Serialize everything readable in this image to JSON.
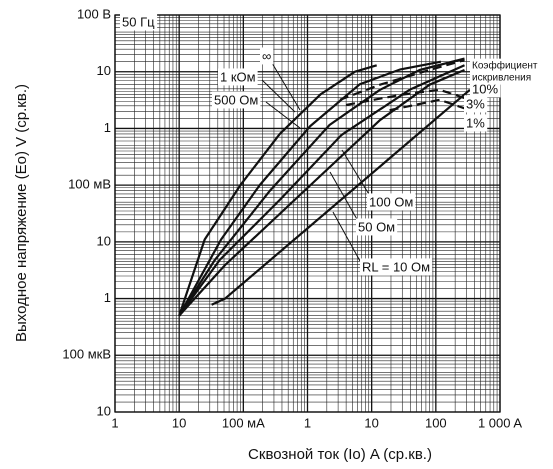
{
  "chart_data": {
    "type": "line",
    "log_x": true,
    "log_y": true,
    "grid": true,
    "xlabel": "Сквозной ток (Io) A (ср.кв.)",
    "ylabel": "Выходное напряжение  (Eo) V (ср.кв.)",
    "annotations": [
      "50 Гц",
      "Коэффициент",
      "искривления"
    ],
    "xlim": [
      0.001,
      1000
    ],
    "ylim": [
      1e-05,
      100
    ],
    "xticks": [
      {
        "value": 0.001,
        "label": "1"
      },
      {
        "value": 0.01,
        "label": "10"
      },
      {
        "value": 0.1,
        "label": "100 мA"
      },
      1,
      10,
      100,
      {
        "value": 1000,
        "label": "1 000 A"
      }
    ],
    "yticks": [
      {
        "value": 1e-05,
        "label": "10"
      },
      {
        "value": 0.0001,
        "label": "100 мкВ"
      },
      {
        "value": 0.001,
        "label": "1"
      },
      {
        "value": 0.01,
        "label": "10"
      },
      {
        "value": 0.1,
        "label": "100 мВ"
      },
      1,
      10,
      {
        "value": 100,
        "label": "100 В"
      }
    ],
    "series": [
      {
        "name": "∞",
        "color": "#111111",
        "x": [
          0.01,
          0.025,
          0.09,
          0.37,
          1.6,
          5.5,
          12
        ],
        "values": [
          0.0005,
          0.011,
          0.1,
          0.8,
          4,
          10,
          13
        ]
      },
      {
        "name": "1 кОм",
        "color": "#111111",
        "x": [
          0.01,
          0.045,
          0.18,
          1.1,
          6.5,
          28,
          120
        ],
        "values": [
          0.0005,
          0.011,
          0.1,
          1.1,
          6,
          11,
          15
        ]
      },
      {
        "name": "500 Ом",
        "color": "#111111",
        "x": [
          0.01,
          0.036,
          0.26,
          2.2,
          13.5,
          56,
          280
        ],
        "values": [
          0.0005,
          0.0048,
          0.08,
          1.15,
          4.8,
          10.7,
          17
        ]
      },
      {
        "name": "100 Ом",
        "color": "#111111",
        "x": [
          0.01,
          0.043,
          0.37,
          3.4,
          39,
          280
        ],
        "values": [
          0.0005,
          0.0048,
          0.055,
          0.77,
          4.8,
          13
        ]
      },
      {
        "name": "50 Ом",
        "color": "#111111",
        "x": [
          0.01,
          0.052,
          0.76,
          13.5,
          80,
          280
        ],
        "values": [
          0.0005,
          0.0039,
          0.067,
          1.4,
          5.9,
          10.7
        ]
      },
      {
        "name": "RL = 10 Ом",
        "color": "#111111",
        "x": [
          0.032,
          0.052,
          340
        ],
        "values": [
          0.00078,
          0.001,
          4.8
        ]
      },
      {
        "name": "10%",
        "color": "#111111",
        "dashed": true,
        "x": [
          3.2,
          13.5,
          80,
          280
        ],
        "values": [
          3.2,
          5.9,
          10.7,
          16
        ]
      },
      {
        "name": "3%",
        "color": "#111111",
        "dashed": true,
        "x": [
          4,
          28,
          115,
          340
        ],
        "values": [
          2.6,
          3.9,
          4.8,
          3.2
        ]
      },
      {
        "name": "1%",
        "color": "#111111",
        "dashed": true,
        "x": [
          19,
          115,
          340
        ],
        "values": [
          2.1,
          3.2,
          2.1
        ]
      }
    ]
  }
}
